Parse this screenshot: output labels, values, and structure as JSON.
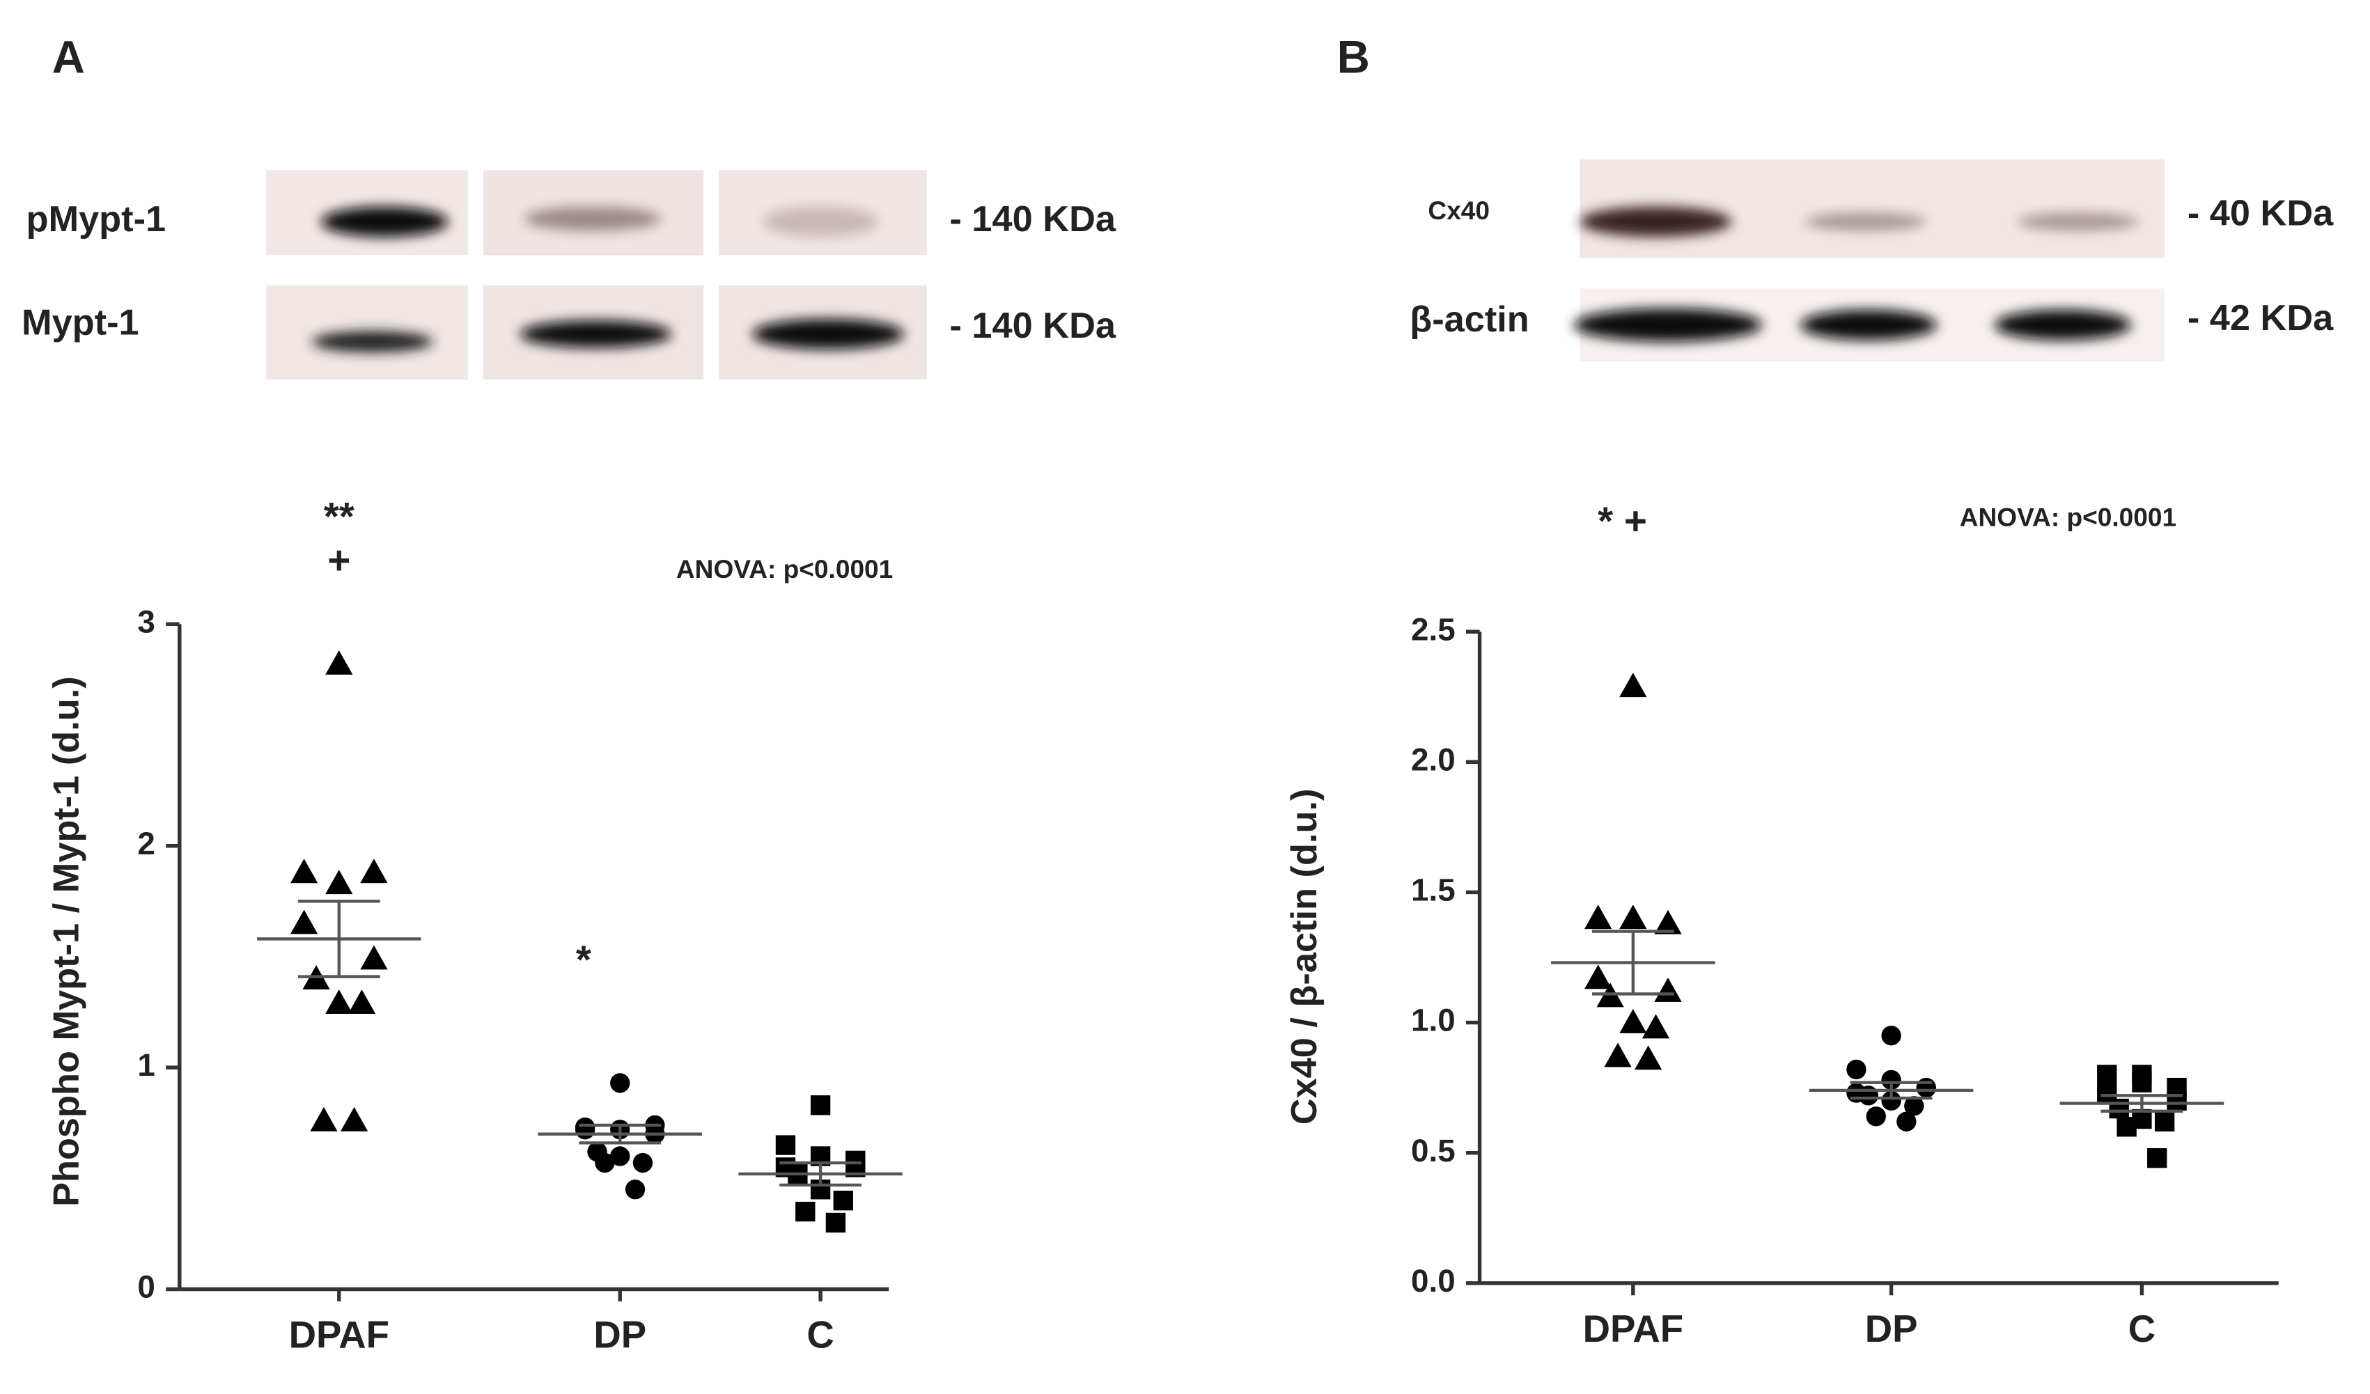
{
  "chart_data": [
    {
      "type": "dot",
      "panel": "A",
      "blot_labels": [
        "pMypt-1",
        "Mypt-1"
      ],
      "blot_sizes": [
        "- 140 KDa",
        "- 140 KDa"
      ],
      "ylabel": "Phospho Mypt-1 / Mypt-1 (d.u.)",
      "ylim": [
        0,
        3
      ],
      "yticks": [
        0,
        1,
        2,
        3
      ],
      "annotations": [
        "**",
        "+",
        "*",
        "ANOVA: p<0.0001"
      ],
      "groups": [
        {
          "name": "DPAF",
          "marker": "triangle",
          "values": [
            2.82,
            1.88,
            1.83,
            1.88,
            1.65,
            1.49,
            1.4,
            1.29,
            1.29,
            0.76,
            0.76
          ],
          "mean": 1.58,
          "sem": 0.17
        },
        {
          "name": "DP",
          "marker": "circle",
          "values": [
            0.93,
            0.73,
            0.72,
            0.7,
            0.72,
            0.74,
            0.62,
            0.6,
            0.57,
            0.57,
            0.45
          ],
          "mean": 0.7,
          "sem": 0.04
        },
        {
          "name": "C",
          "marker": "square",
          "values": [
            0.83,
            0.65,
            0.6,
            0.58,
            0.55,
            0.55,
            0.52,
            0.45,
            0.4,
            0.35,
            0.3
          ],
          "mean": 0.52,
          "sem": 0.05
        }
      ]
    },
    {
      "type": "dot",
      "panel": "B",
      "blot_labels": [
        "Cx40",
        "β-actin"
      ],
      "blot_sizes": [
        "- 40 KDa",
        "- 42 KDa"
      ],
      "ylabel": "Cx40 / β-actin (d.u.)",
      "ylim": [
        0,
        2.5
      ],
      "yticks": [
        {
          "value": 0,
          "label": "0.0"
        },
        0.5,
        {
          "value": 1,
          "label": "1.0"
        },
        1.5,
        {
          "value": 2,
          "label": "2.0"
        },
        2.5
      ],
      "annotations": [
        "* +",
        "ANOVA: p<0.0001"
      ],
      "groups": [
        {
          "name": "DPAF",
          "marker": "triangle",
          "values": [
            2.29,
            1.4,
            1.4,
            1.38,
            1.17,
            1.12,
            1.1,
            1.0,
            0.98,
            0.87,
            0.86
          ],
          "mean": 1.23,
          "sem": 0.12
        },
        {
          "name": "DP",
          "marker": "circle",
          "values": [
            0.95,
            0.82,
            0.78,
            0.75,
            0.73,
            0.75,
            0.72,
            0.7,
            0.68,
            0.64,
            0.62
          ],
          "mean": 0.74,
          "sem": 0.03
        },
        {
          "name": "C",
          "marker": "square",
          "values": [
            0.8,
            0.8,
            0.77,
            0.75,
            0.73,
            0.7,
            0.67,
            0.63,
            0.62,
            0.6,
            0.48
          ],
          "mean": 0.69,
          "sem": 0.03
        }
      ]
    }
  ]
}
